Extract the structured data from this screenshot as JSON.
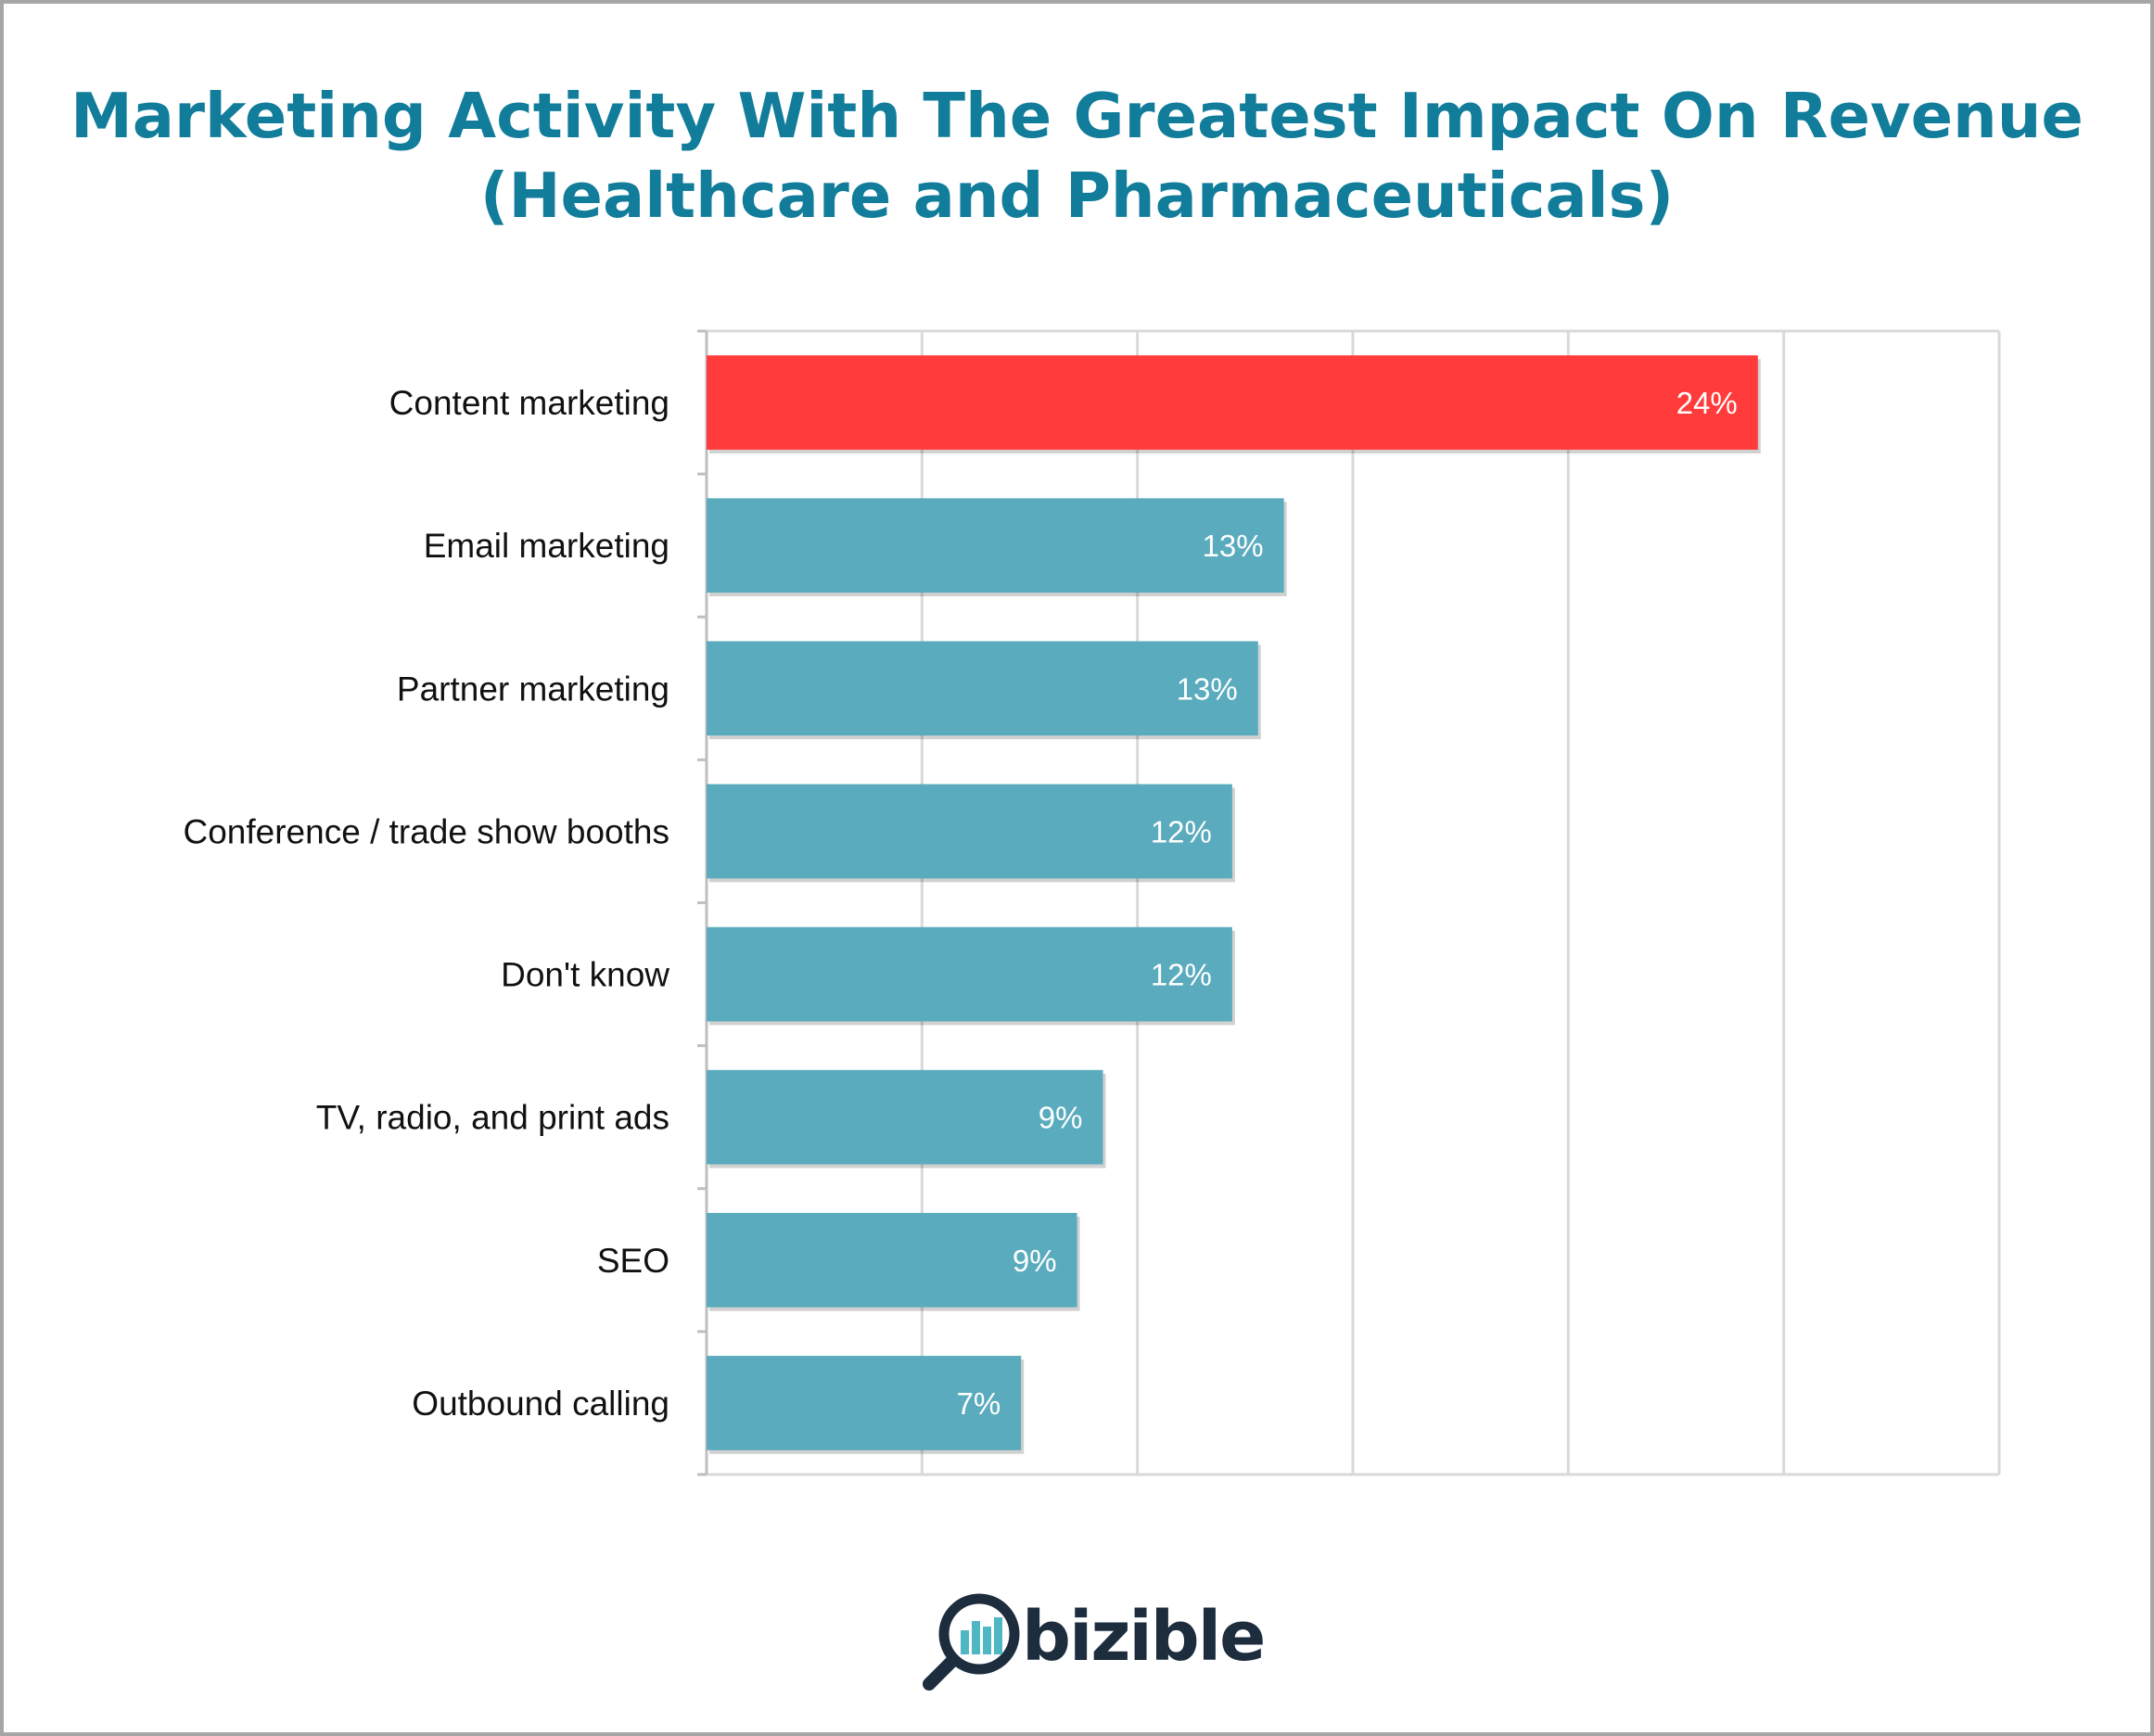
{
  "chart_data": {
    "type": "bar",
    "orientation": "horizontal",
    "title": "Marketing Activity With The Greatest Impact On Revenue",
    "subtitle": "(Healthcare and Pharmaceuticals)",
    "xlabel": "",
    "ylabel": "",
    "xlim": [
      0,
      30
    ],
    "grid": true,
    "categories": [
      "Content marketing",
      "Email marketing",
      "Partner marketing",
      "Conference / trade show booths",
      "Don't know",
      "TV, radio, and print ads",
      "SEO",
      "Outbound calling"
    ],
    "values": [
      24.4,
      13.4,
      12.8,
      12.2,
      12.2,
      9.2,
      8.6,
      7.3
    ],
    "labels": [
      "24%",
      "13%",
      "13%",
      "12%",
      "12%",
      "9%",
      "9%",
      "7%"
    ],
    "colors": {
      "highlight": "#ff3b3b",
      "default": "#5aabbd"
    },
    "highlight_index": 0
  },
  "logo": {
    "text": "bizible",
    "icon": "magnifier-bar-chart-icon",
    "colors": {
      "text": "#1d2d3e",
      "bars": "#4fb7c4",
      "ring": "#1d2d3e"
    }
  }
}
